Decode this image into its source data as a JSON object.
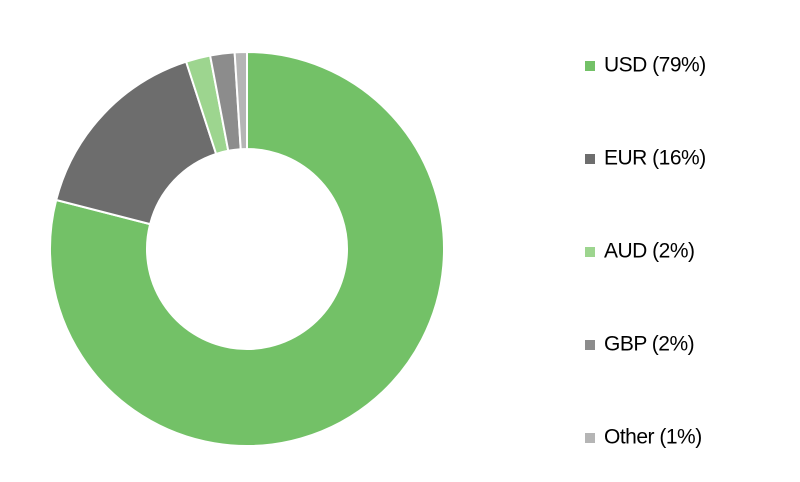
{
  "chart_data": {
    "type": "donut",
    "categories": [
      "USD (79%)",
      "EUR (16%)",
      "AUD (2%)",
      "GBP (2%)",
      "Other (1%)"
    ],
    "values": [
      79,
      16,
      2,
      2,
      1
    ],
    "colors": [
      "#73c167",
      "#6d6d6d",
      "#9dd58f",
      "#8c8c8c",
      "#b5b5b5"
    ],
    "legend": "right"
  }
}
